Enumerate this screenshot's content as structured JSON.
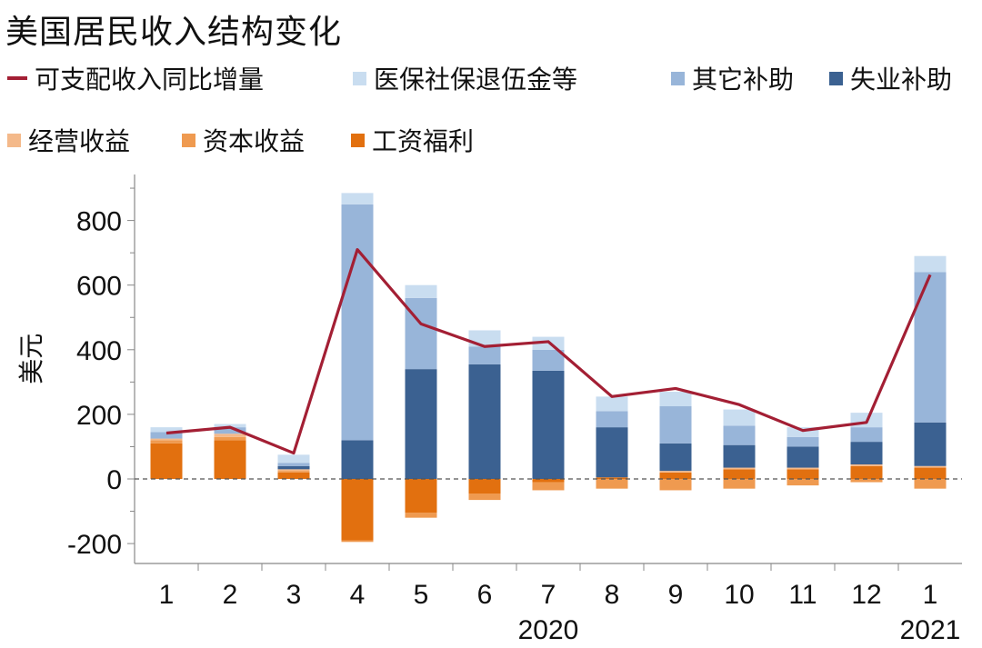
{
  "title": "美国居民收入结构变化",
  "legend": [
    {
      "label": "可支配收入同比增量",
      "kind": "line",
      "color": "#A31F34"
    },
    {
      "label": "医保社保退伍金等",
      "kind": "box",
      "color": "#C9DDF0"
    },
    {
      "label": "其它补助",
      "kind": "box",
      "color": "#98B5D9"
    },
    {
      "label": "失业补助",
      "kind": "box",
      "color": "#3B6191"
    },
    {
      "label": "经营收益",
      "kind": "box",
      "color": "#F4B98A"
    },
    {
      "label": "资本收益",
      "kind": "box",
      "color": "#EF9A50"
    },
    {
      "label": "工资福利",
      "kind": "box",
      "color": "#E2700F"
    }
  ],
  "chart_data": {
    "type": "bar",
    "stacked": true,
    "ylabel": "美元",
    "ylim": [
      -250,
      900
    ],
    "yticks": [
      -200,
      0,
      200,
      400,
      600,
      800
    ],
    "categories": [
      "1",
      "2",
      "3",
      "4",
      "5",
      "6",
      "7",
      "8",
      "9",
      "10",
      "11",
      "12",
      "1"
    ],
    "year_labels": [
      {
        "label": "2020",
        "at_index": 6
      },
      {
        "label": "2021",
        "at_index": 12
      }
    ],
    "zero_line": "dashed",
    "series": [
      {
        "name": "工资福利",
        "color": "#E2700F",
        "values": [
          110,
          120,
          20,
          -190,
          -105,
          -45,
          -10,
          5,
          20,
          30,
          30,
          40,
          35
        ]
      },
      {
        "name": "资本收益",
        "color": "#EF9A50",
        "values": [
          10,
          10,
          5,
          -5,
          -15,
          -20,
          -25,
          -30,
          -35,
          -30,
          -20,
          -10,
          -30
        ]
      },
      {
        "name": "经营收益",
        "color": "#F4B98A",
        "values": [
          5,
          10,
          5,
          0,
          0,
          0,
          0,
          0,
          5,
          5,
          5,
          5,
          5
        ]
      },
      {
        "name": "失业补助",
        "color": "#3B6191",
        "values": [
          0,
          0,
          10,
          120,
          340,
          355,
          335,
          155,
          85,
          70,
          65,
          70,
          135
        ]
      },
      {
        "name": "其它补助",
        "color": "#98B5D9",
        "values": [
          20,
          20,
          10,
          730,
          220,
          55,
          65,
          50,
          115,
          60,
          30,
          45,
          465
        ]
      },
      {
        "name": "医保社保退伍金等",
        "color": "#C9DDF0",
        "values": [
          15,
          10,
          25,
          35,
          40,
          50,
          40,
          45,
          45,
          50,
          30,
          45,
          50
        ]
      }
    ],
    "line": {
      "name": "可支配收入同比增量",
      "color": "#A31F34",
      "values": [
        142,
        160,
        80,
        710,
        480,
        410,
        425,
        255,
        280,
        230,
        150,
        175,
        632
      ]
    }
  }
}
